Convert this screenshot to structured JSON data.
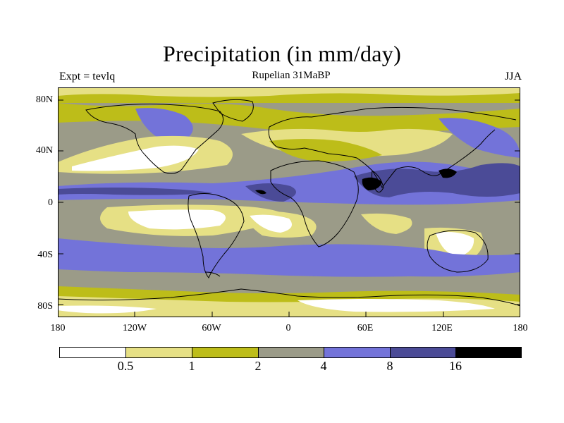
{
  "title": "Precipitation (in mm/day)",
  "subtitle": "Rupelian  31MaBP",
  "experiment": "Expt = tevlq",
  "season": "JJA",
  "y_ticks": [
    "80N",
    "40N",
    "0",
    "40S",
    "80S"
  ],
  "x_ticks": [
    "180",
    "120W",
    "60W",
    "0",
    "60E",
    "120E",
    "180"
  ],
  "legend": {
    "colors": [
      "#ffffff",
      "#e6e085",
      "#bdbd19",
      "#9b9b88",
      "#7373d9",
      "#4b4b97",
      "#000000"
    ],
    "labels": [
      "0.5",
      "1",
      "2",
      "4",
      "8",
      "16"
    ]
  },
  "colors": {
    "very_dry": "#ffffff",
    "dry": "#e6e085",
    "mid": "#bdbd19",
    "moist": "#9b9b88",
    "wet": "#7373d9",
    "very_wet": "#4b4b97",
    "extreme": "#000000"
  }
}
